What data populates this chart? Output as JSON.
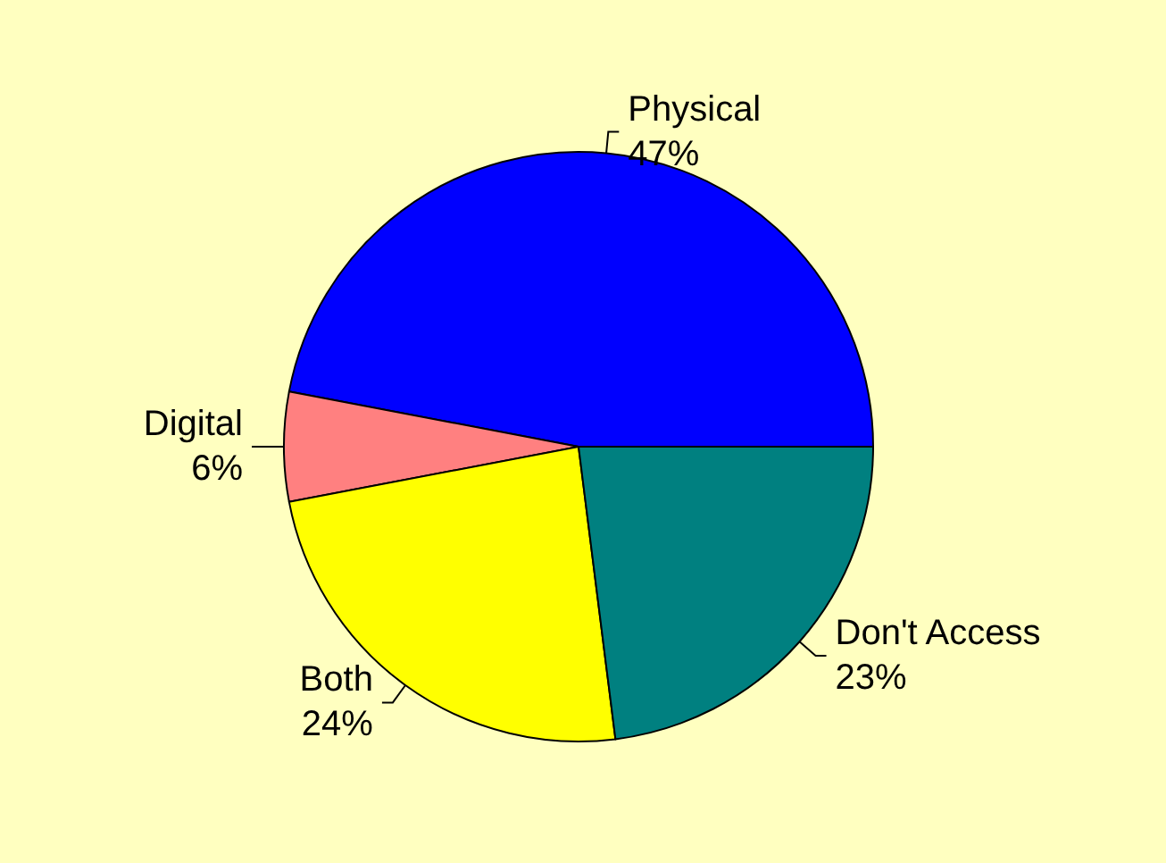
{
  "chart_data": {
    "type": "pie",
    "categories": [
      "Physical",
      "Digital",
      "Both",
      "Don't Access"
    ],
    "values": [
      47,
      6,
      24,
      23
    ],
    "value_labels": [
      "47%",
      "6%",
      "24%",
      "23%"
    ],
    "colors": [
      "#0000ff",
      "#ff8080",
      "#ffff00",
      "#008080"
    ],
    "legend": false
  }
}
